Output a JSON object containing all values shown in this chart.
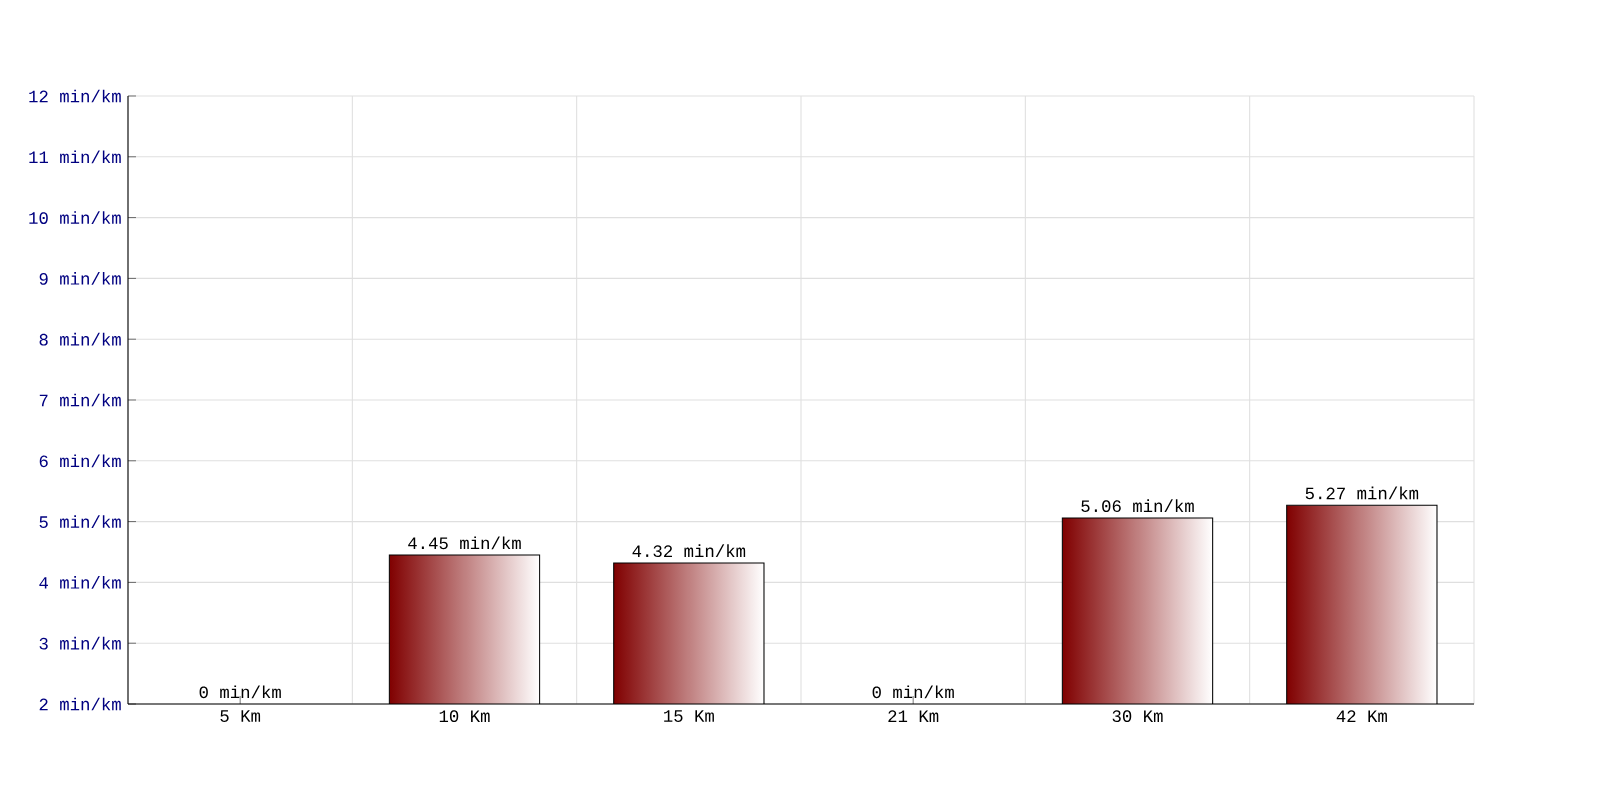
{
  "chart_data": {
    "type": "bar",
    "categories": [
      "5 Km",
      "10 Km",
      "15 Km",
      "21 Km",
      "30 Km",
      "42 Km"
    ],
    "values": [
      null,
      4.45,
      4.32,
      null,
      5.06,
      5.27
    ],
    "value_labels": [
      "0 min/km",
      "4.45 min/km",
      "4.32 min/km",
      "0 min/km",
      "5.06 min/km",
      "5.27 min/km"
    ],
    "color": "#800000",
    "grid": true,
    "ylim": [
      2,
      12
    ],
    "yticks": [
      {
        "value": 2,
        "label": "2 min/km"
      },
      {
        "value": 3,
        "label": "3 min/km"
      },
      {
        "value": 4,
        "label": "4 min/km"
      },
      {
        "value": 5,
        "label": "5 min/km"
      },
      {
        "value": 6,
        "label": "6 min/km"
      },
      {
        "value": 7,
        "label": "7 min/km"
      },
      {
        "value": 8,
        "label": "8 min/km"
      },
      {
        "value": 9,
        "label": "9 min/km"
      },
      {
        "value": 10,
        "label": "10 min/km"
      },
      {
        "value": 11,
        "label": "11 min/km"
      },
      {
        "value": 12,
        "label": "12 min/km"
      }
    ]
  }
}
